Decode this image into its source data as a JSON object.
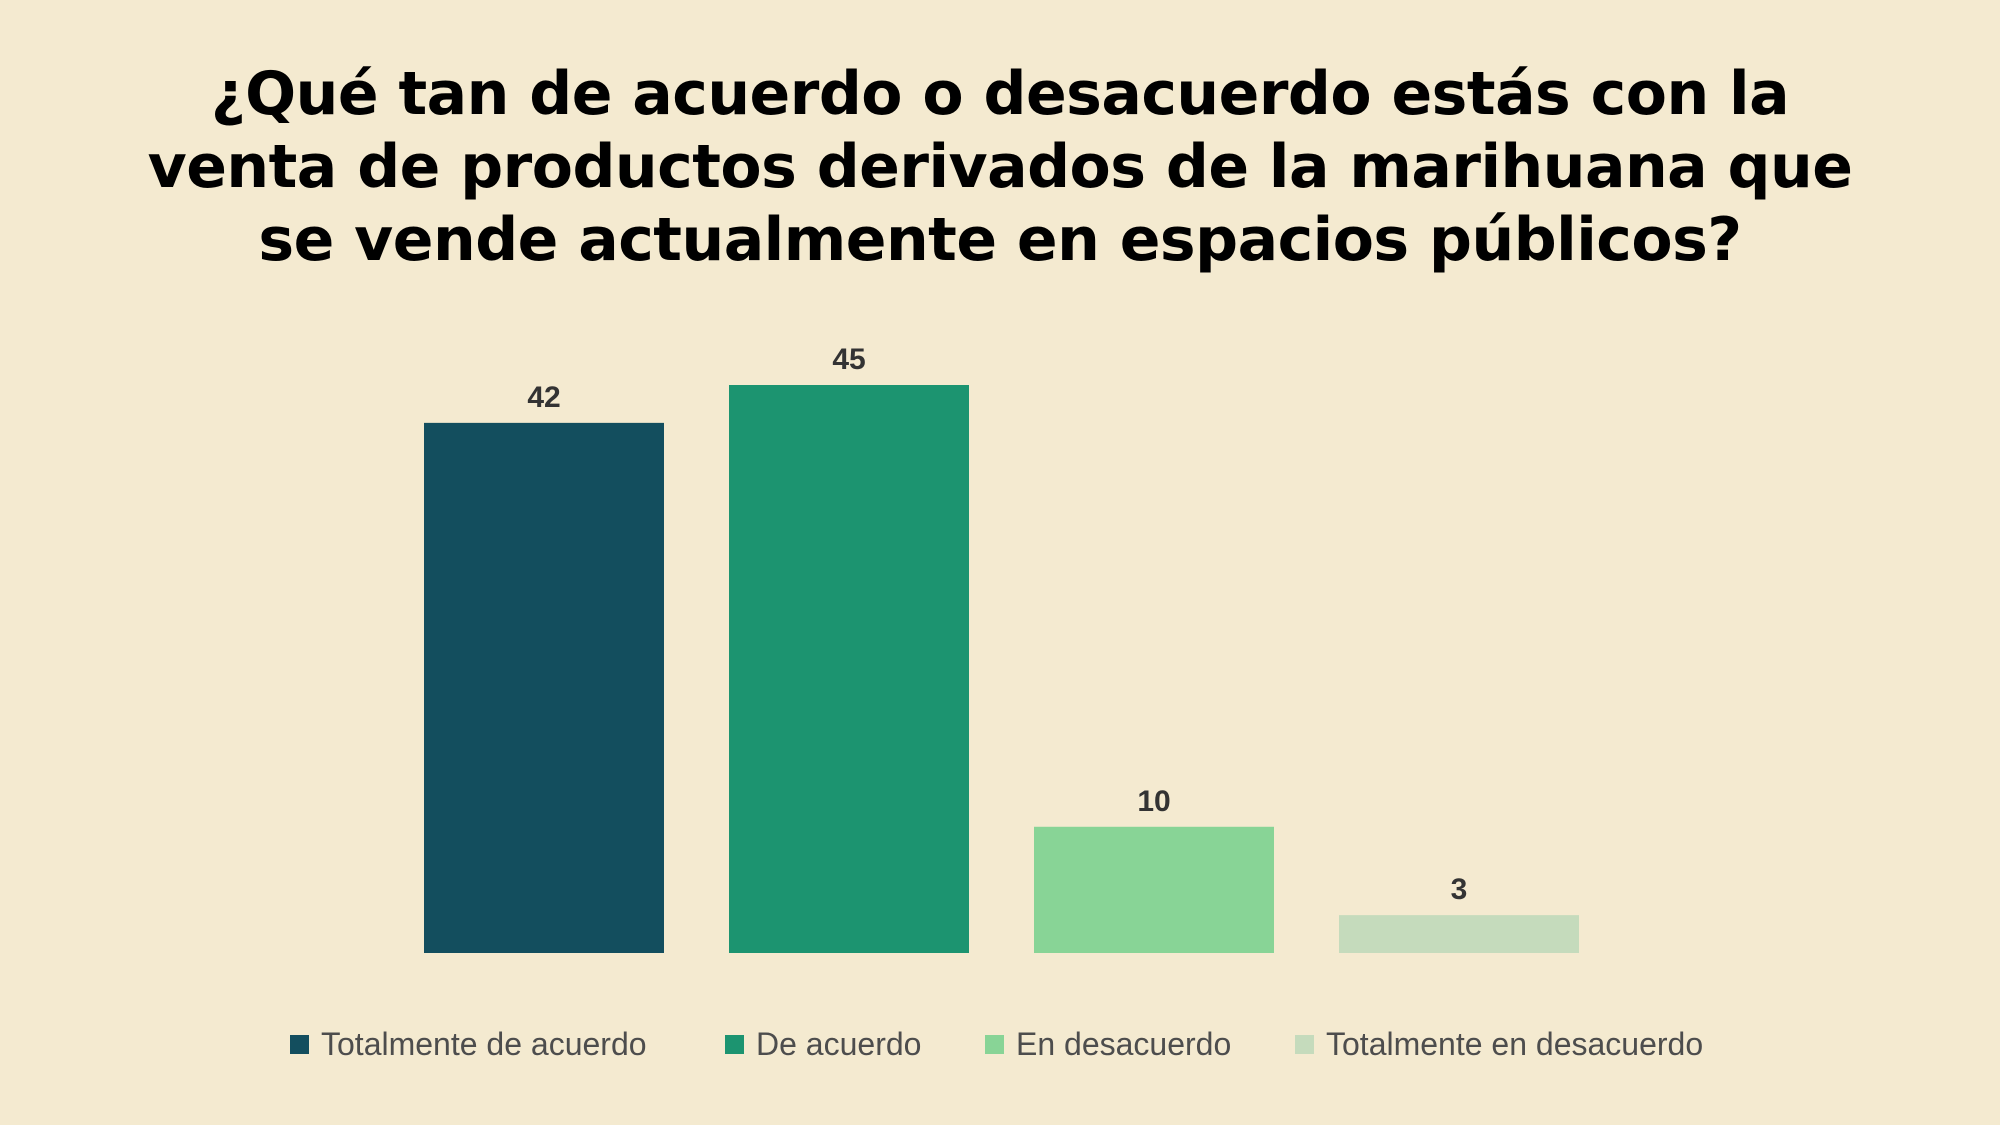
{
  "chart_data": {
    "type": "bar",
    "title": "¿Qué tan de acuerdo o desacuerdo estás con la venta de productos derivados de la marihuana que se vende actualmente en espacios públicos?",
    "title_lines": [
      "¿Qué tan de acuerdo o desacuerdo estás con la",
      "venta de productos derivados de la marihuana que",
      "se vende actualmente en espacios públicos?"
    ],
    "categories": [
      "Totalmente de acuerdo",
      "De acuerdo",
      "En desacuerdo",
      "Totalmente en desacuerdo"
    ],
    "values": [
      42,
      45,
      10,
      3
    ],
    "colors": [
      "#134E5E",
      "#1C9470",
      "#88D496",
      "#C5DBBC"
    ],
    "xlabel": "",
    "ylabel": "",
    "ylim": [
      0,
      45
    ],
    "grid": false,
    "legend_position": "bottom"
  }
}
